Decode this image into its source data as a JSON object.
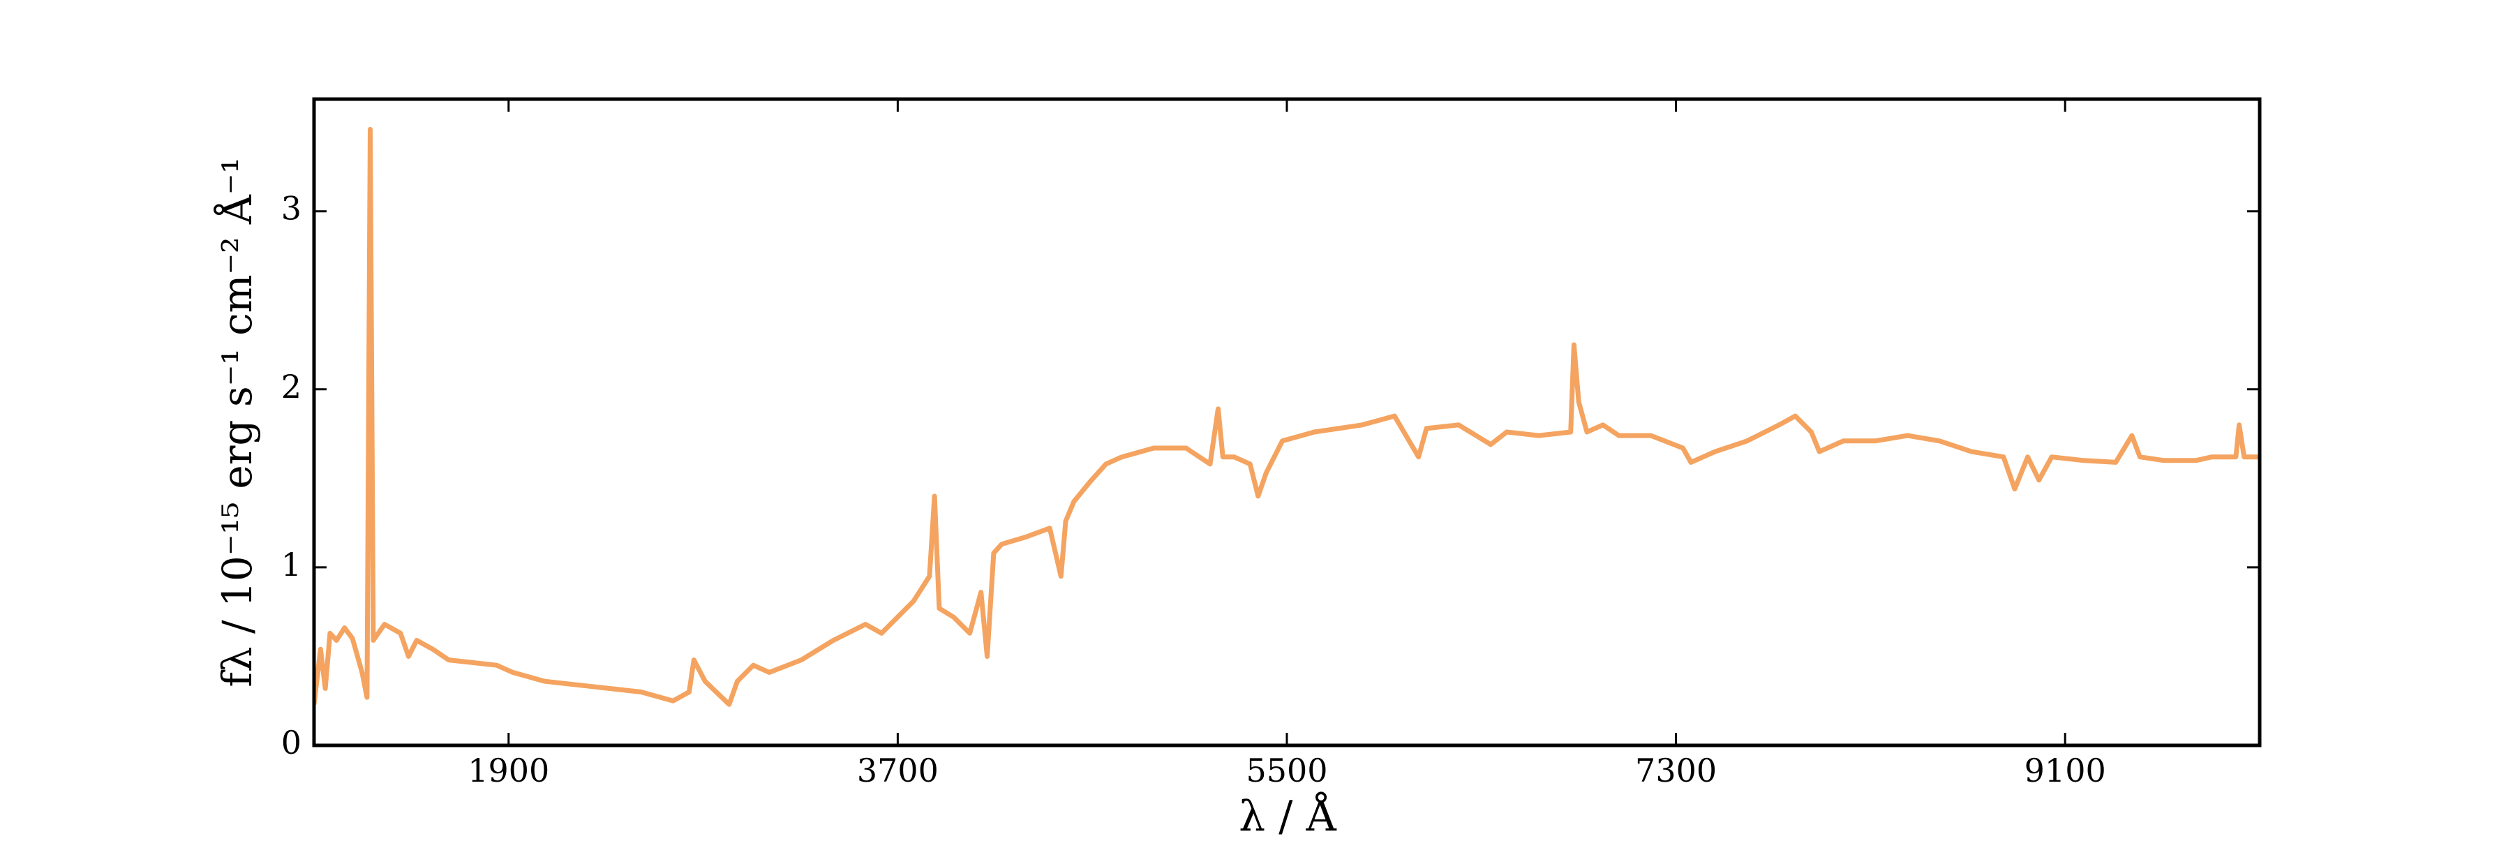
{
  "chart_data": {
    "type": "line",
    "xlabel": "λ / Å",
    "ylabel": "fλ / 10⁻¹⁵ erg s⁻¹ cm⁻² Å⁻¹",
    "x": [
      1000,
      1030,
      1052,
      1074,
      1104,
      1141,
      1178,
      1222,
      1245,
      1260,
      1274,
      1326,
      1400,
      1437,
      1475,
      1549,
      1623,
      1697,
      1845,
      1919,
      2068,
      2290,
      2513,
      2661,
      2735,
      2757,
      2809,
      2920,
      2958,
      3032,
      3106,
      3254,
      3402,
      3551,
      3625,
      3699,
      3773,
      3847,
      3870,
      3892,
      3959,
      4033,
      4085,
      4114,
      4144,
      4181,
      4292,
      4403,
      4455,
      4477,
      4515,
      4589,
      4663,
      4737,
      4885,
      5034,
      5145,
      5182,
      5204,
      5256,
      5330,
      5367,
      5404,
      5479,
      5627,
      5849,
      5998,
      6109,
      6146,
      6294,
      6443,
      6517,
      6665,
      6813,
      6828,
      6850,
      6888,
      6962,
      7036,
      7184,
      7332,
      7369,
      7481,
      7629,
      7777,
      7852,
      7926,
      7963,
      8074,
      8222,
      8371,
      8519,
      8667,
      8815,
      8867,
      8927,
      8979,
      9038,
      9186,
      9334,
      9409,
      9446,
      9557,
      9705,
      9779,
      9890,
      9905,
      9928,
      10000
    ],
    "values": [
      0.23,
      0.54,
      0.32,
      0.63,
      0.59,
      0.66,
      0.6,
      0.41,
      0.27,
      3.46,
      0.59,
      0.68,
      0.63,
      0.5,
      0.59,
      0.54,
      0.48,
      0.47,
      0.45,
      0.41,
      0.36,
      0.33,
      0.3,
      0.25,
      0.3,
      0.48,
      0.36,
      0.23,
      0.36,
      0.45,
      0.41,
      0.48,
      0.59,
      0.68,
      0.63,
      0.72,
      0.81,
      0.95,
      1.4,
      0.77,
      0.72,
      0.63,
      0.86,
      0.5,
      1.08,
      1.13,
      1.17,
      1.22,
      0.95,
      1.26,
      1.37,
      1.48,
      1.58,
      1.62,
      1.67,
      1.67,
      1.58,
      1.89,
      1.62,
      1.62,
      1.58,
      1.4,
      1.53,
      1.71,
      1.76,
      1.8,
      1.85,
      1.62,
      1.78,
      1.8,
      1.69,
      1.76,
      1.74,
      1.76,
      2.25,
      1.93,
      1.76,
      1.8,
      1.74,
      1.74,
      1.67,
      1.59,
      1.65,
      1.71,
      1.8,
      1.85,
      1.76,
      1.65,
      1.71,
      1.71,
      1.74,
      1.71,
      1.65,
      1.62,
      1.44,
      1.62,
      1.49,
      1.62,
      1.6,
      1.59,
      1.74,
      1.62,
      1.6,
      1.6,
      1.62,
      1.62,
      1.8,
      1.62,
      1.62
    ],
    "color": "#f4a460",
    "xlim": [
      1000,
      10000
    ],
    "xticks": [
      1900,
      3700,
      5500,
      7300,
      9100
    ],
    "ylim": [
      0,
      3.63
    ],
    "yticks": [
      0,
      1,
      2,
      3
    ]
  }
}
